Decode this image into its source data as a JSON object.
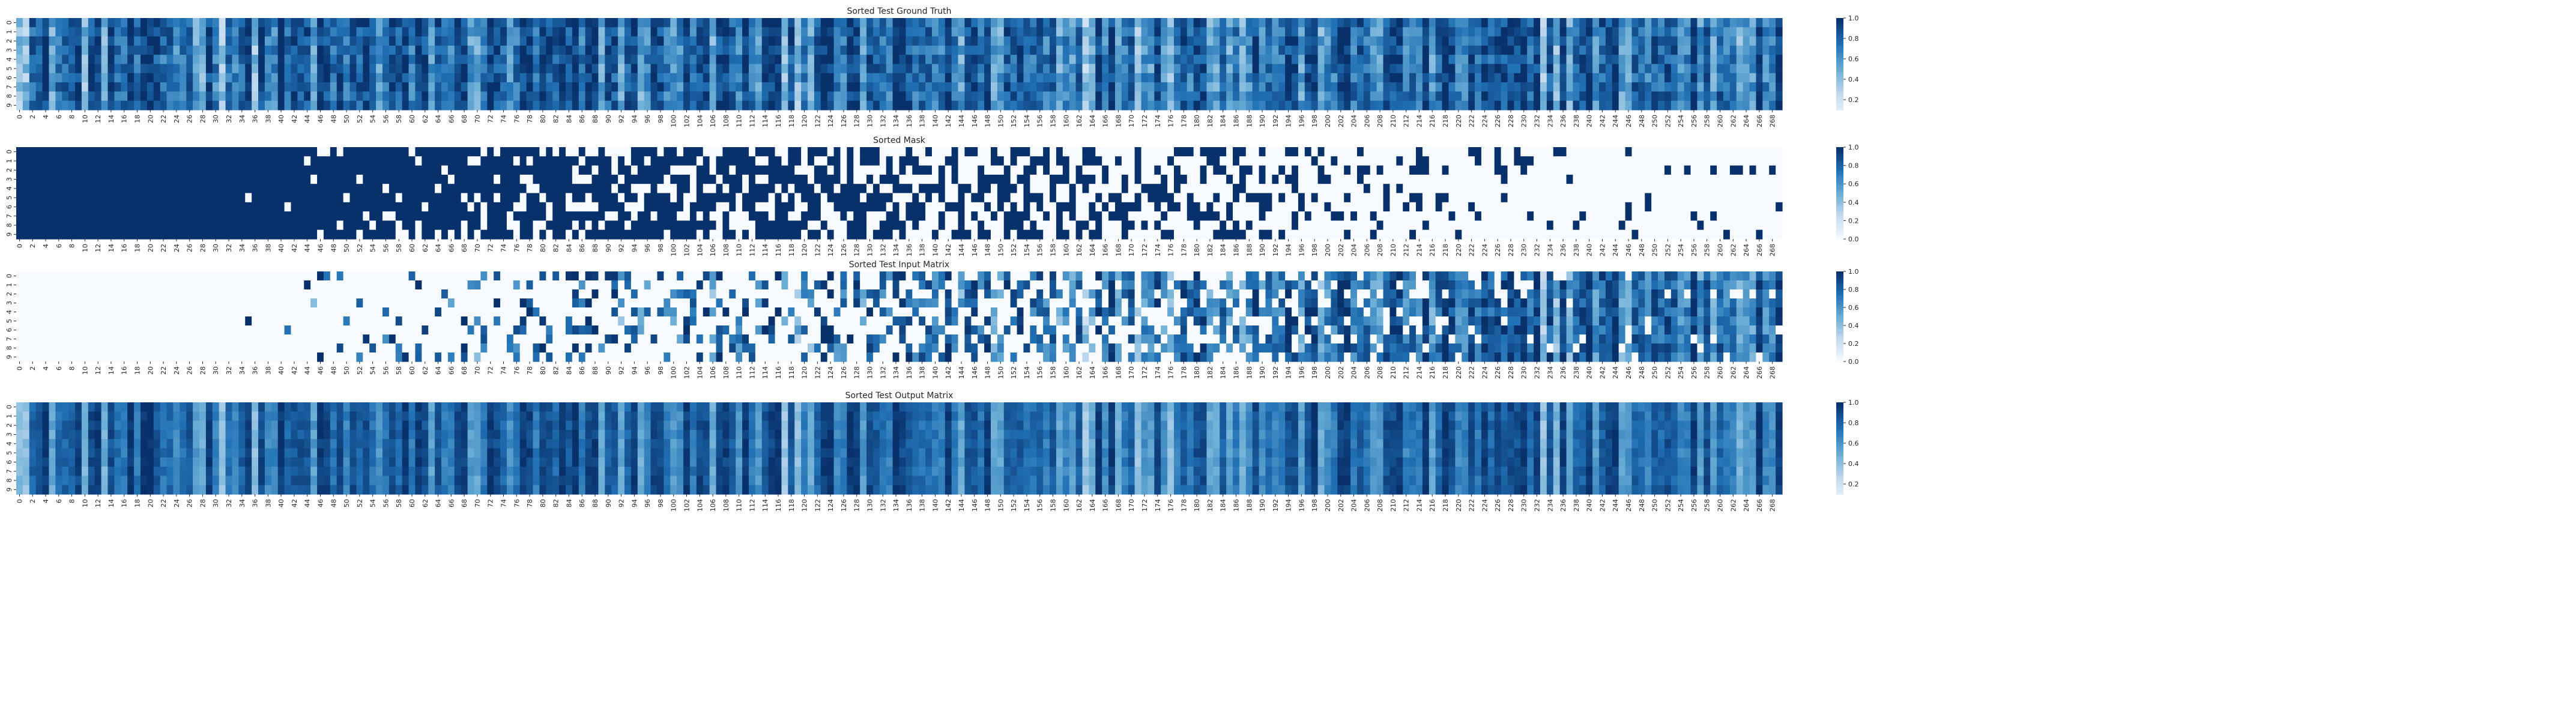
{
  "figure": {
    "note": "4 stacked heatmaps of 10 rows x 270 columns, colormap Blues"
  },
  "colors": {
    "cmap_low": "#f7fbff",
    "cmap_mid": "#6baed6",
    "cmap_high": "#08306b",
    "text": "#262626"
  },
  "chart_data": [
    {
      "type": "heatmap",
      "title": "Sorted Test Ground Truth",
      "rows": 10,
      "cols": 270,
      "x_tick_labels": [
        "0",
        "2",
        "4",
        "6",
        "8",
        "10",
        "12",
        "14",
        "16",
        "18",
        "20",
        "22",
        "24",
        "26",
        "28",
        "30",
        "32",
        "34",
        "36",
        "38",
        "40",
        "42",
        "44",
        "46",
        "48",
        "50",
        "52",
        "54",
        "56",
        "58",
        "60",
        "62",
        "64",
        "66",
        "68",
        "70",
        "72",
        "74",
        "76",
        "78",
        "80",
        "82",
        "84",
        "86",
        "88",
        "90",
        "92",
        "94",
        "96",
        "98",
        "100",
        "102",
        "104",
        "106",
        "108",
        "110",
        "112",
        "114",
        "116",
        "118",
        "120",
        "122",
        "124",
        "126",
        "128",
        "130",
        "132",
        "134",
        "136",
        "138",
        "140",
        "142",
        "144",
        "146",
        "148",
        "150",
        "152",
        "154",
        "156",
        "158",
        "160",
        "162",
        "164",
        "166",
        "168",
        "170",
        "172",
        "174",
        "176",
        "178",
        "180",
        "182",
        "184",
        "186",
        "188",
        "190",
        "192",
        "194",
        "196",
        "198",
        "200",
        "202",
        "204",
        "206",
        "208",
        "210",
        "212",
        "214",
        "216",
        "218",
        "220",
        "222",
        "224",
        "226",
        "228",
        "230",
        "232",
        "234",
        "236",
        "238",
        "240",
        "242",
        "244",
        "246",
        "248",
        "250",
        "252",
        "254",
        "256",
        "258",
        "260",
        "262",
        "264",
        "266",
        "268"
      ],
      "y_tick_labels": [
        "0",
        "1",
        "2",
        "3",
        "4",
        "5",
        "6",
        "7",
        "8",
        "9"
      ],
      "colorbar": {
        "range": [
          0.1,
          1.0
        ],
        "ticks": [
          "0.2",
          "0.4",
          "0.6",
          "0.8",
          "1.0"
        ]
      },
      "pattern": "column-dominant"
    },
    {
      "type": "heatmap",
      "title": "Sorted Mask",
      "rows": 10,
      "cols": 270,
      "x_tick_labels": [
        "0",
        "2",
        "4",
        "6",
        "8",
        "10",
        "12",
        "14",
        "16",
        "18",
        "20",
        "22",
        "24",
        "26",
        "28",
        "30",
        "32",
        "34",
        "36",
        "38",
        "40",
        "42",
        "44",
        "46",
        "48",
        "50",
        "52",
        "54",
        "56",
        "58",
        "60",
        "62",
        "64",
        "66",
        "68",
        "70",
        "72",
        "74",
        "76",
        "78",
        "80",
        "82",
        "84",
        "86",
        "88",
        "90",
        "92",
        "94",
        "96",
        "98",
        "100",
        "102",
        "104",
        "106",
        "108",
        "110",
        "112",
        "114",
        "116",
        "118",
        "120",
        "122",
        "124",
        "126",
        "128",
        "130",
        "132",
        "134",
        "136",
        "138",
        "140",
        "142",
        "144",
        "146",
        "148",
        "150",
        "152",
        "154",
        "156",
        "158",
        "160",
        "162",
        "164",
        "166",
        "168",
        "170",
        "172",
        "174",
        "176",
        "178",
        "180",
        "182",
        "184",
        "186",
        "188",
        "190",
        "192",
        "194",
        "196",
        "198",
        "200",
        "202",
        "204",
        "206",
        "208",
        "210",
        "212",
        "214",
        "216",
        "218",
        "220",
        "222",
        "224",
        "226",
        "228",
        "230",
        "232",
        "234",
        "236",
        "238",
        "240",
        "242",
        "244",
        "246",
        "248",
        "250",
        "252",
        "254",
        "256",
        "258",
        "260",
        "262",
        "264",
        "266",
        "268"
      ],
      "y_tick_labels": [
        "0",
        "1",
        "2",
        "3",
        "4",
        "5",
        "6",
        "7",
        "8",
        "9"
      ],
      "colorbar": {
        "range": [
          0.0,
          1.0
        ],
        "ticks": [
          "0.0",
          "0.2",
          "0.4",
          "0.6",
          "0.8",
          "1.0"
        ]
      },
      "pattern": "binary-decreasing"
    },
    {
      "type": "heatmap",
      "title": "Sorted Test Input Matrix",
      "rows": 10,
      "cols": 270,
      "x_tick_labels": [
        "0",
        "2",
        "4",
        "6",
        "8",
        "10",
        "12",
        "14",
        "16",
        "18",
        "20",
        "22",
        "24",
        "26",
        "28",
        "30",
        "32",
        "34",
        "36",
        "38",
        "40",
        "42",
        "44",
        "46",
        "48",
        "50",
        "52",
        "54",
        "56",
        "58",
        "60",
        "62",
        "64",
        "66",
        "68",
        "70",
        "72",
        "74",
        "76",
        "78",
        "80",
        "82",
        "84",
        "86",
        "88",
        "90",
        "92",
        "94",
        "96",
        "98",
        "100",
        "102",
        "104",
        "106",
        "108",
        "110",
        "112",
        "114",
        "116",
        "118",
        "120",
        "122",
        "124",
        "126",
        "128",
        "130",
        "132",
        "134",
        "136",
        "138",
        "140",
        "142",
        "144",
        "146",
        "148",
        "150",
        "152",
        "154",
        "156",
        "158",
        "160",
        "162",
        "164",
        "166",
        "168",
        "170",
        "172",
        "174",
        "176",
        "178",
        "180",
        "182",
        "184",
        "186",
        "188",
        "190",
        "192",
        "194",
        "196",
        "198",
        "200",
        "202",
        "204",
        "206",
        "208",
        "210",
        "212",
        "214",
        "216",
        "218",
        "220",
        "222",
        "224",
        "226",
        "228",
        "230",
        "232",
        "234",
        "236",
        "238",
        "240",
        "242",
        "244",
        "246",
        "248",
        "250",
        "252",
        "254",
        "256",
        "258",
        "260",
        "262",
        "264",
        "266",
        "268"
      ],
      "y_tick_labels": [
        "0",
        "1",
        "2",
        "3",
        "4",
        "5",
        "6",
        "7",
        "8",
        "9"
      ],
      "colorbar": {
        "range": [
          0.0,
          1.0
        ],
        "ticks": [
          "0.0",
          "0.2",
          "0.4",
          "0.6",
          "0.8",
          "1.0"
        ]
      },
      "pattern": "masked-values"
    },
    {
      "type": "heatmap",
      "title": "Sorted Test Output Matrix",
      "rows": 10,
      "cols": 270,
      "x_tick_labels": [
        "0",
        "2",
        "4",
        "6",
        "8",
        "10",
        "12",
        "14",
        "16",
        "18",
        "20",
        "22",
        "24",
        "26",
        "28",
        "30",
        "32",
        "34",
        "36",
        "38",
        "40",
        "42",
        "44",
        "46",
        "48",
        "50",
        "52",
        "54",
        "56",
        "58",
        "60",
        "62",
        "64",
        "66",
        "68",
        "70",
        "72",
        "74",
        "76",
        "78",
        "80",
        "82",
        "84",
        "86",
        "88",
        "90",
        "92",
        "94",
        "96",
        "98",
        "100",
        "102",
        "104",
        "106",
        "108",
        "110",
        "112",
        "114",
        "116",
        "118",
        "120",
        "122",
        "124",
        "126",
        "128",
        "130",
        "132",
        "134",
        "136",
        "138",
        "140",
        "142",
        "144",
        "146",
        "148",
        "150",
        "152",
        "154",
        "156",
        "158",
        "160",
        "162",
        "164",
        "166",
        "168",
        "170",
        "172",
        "174",
        "176",
        "178",
        "180",
        "182",
        "184",
        "186",
        "188",
        "190",
        "192",
        "194",
        "196",
        "198",
        "200",
        "202",
        "204",
        "206",
        "208",
        "210",
        "212",
        "214",
        "216",
        "218",
        "220",
        "222",
        "224",
        "226",
        "228",
        "230",
        "232",
        "234",
        "236",
        "238",
        "240",
        "242",
        "244",
        "246",
        "248",
        "250",
        "252",
        "254",
        "256",
        "258",
        "260",
        "262",
        "264",
        "266",
        "268"
      ],
      "y_tick_labels": [
        "0",
        "1",
        "2",
        "3",
        "4",
        "5",
        "6",
        "7",
        "8",
        "9"
      ],
      "colorbar": {
        "range": [
          0.1,
          1.0
        ],
        "ticks": [
          "0.2",
          "0.4",
          "0.6",
          "0.8",
          "1.0"
        ]
      },
      "pattern": "column-smooth"
    }
  ]
}
